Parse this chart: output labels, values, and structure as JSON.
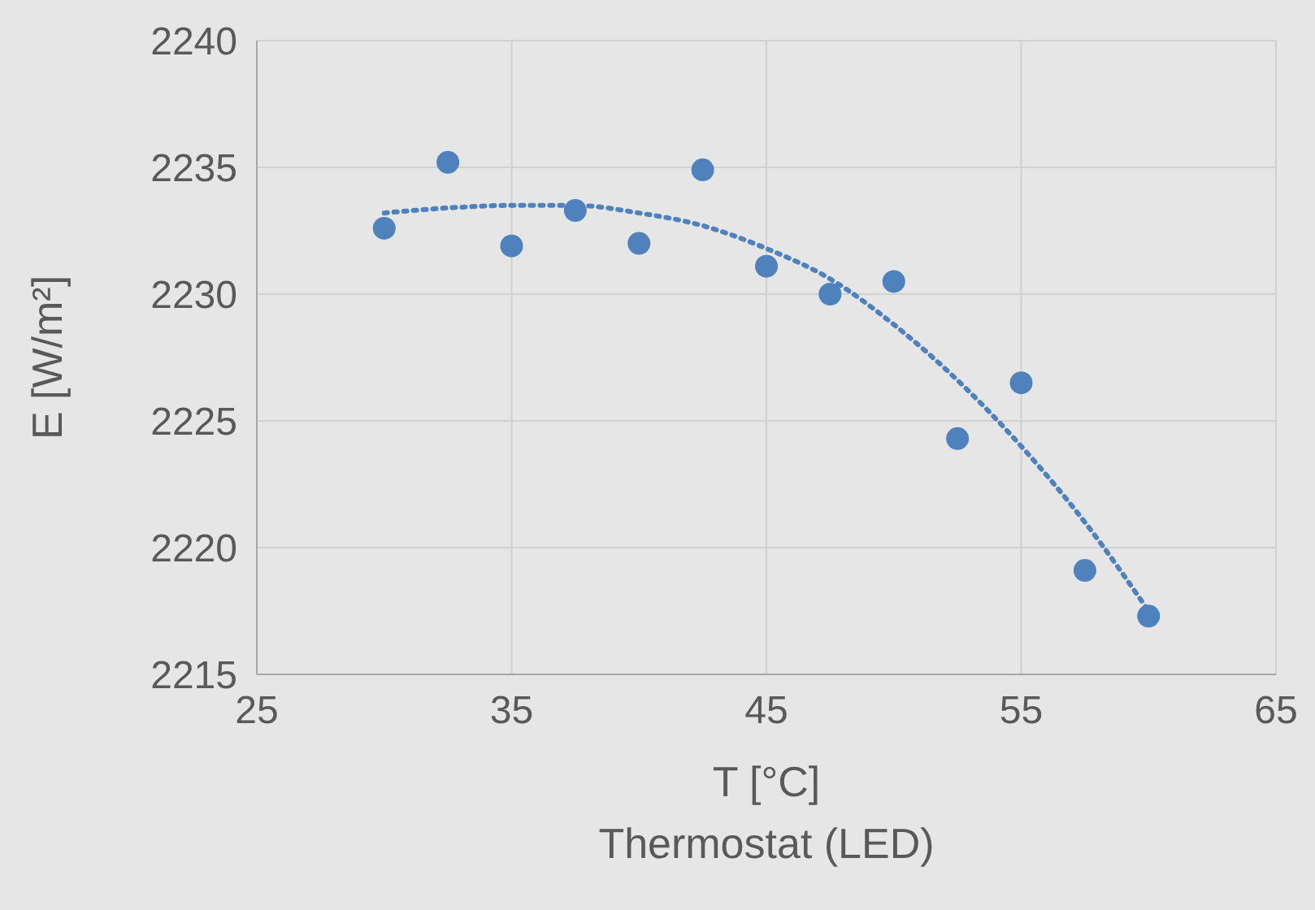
{
  "chart_data": {
    "type": "scatter",
    "xlabel": "T [°C]",
    "ylabel": "E [W/m²]",
    "annotations": [
      "Thermostat (LED)"
    ],
    "xlim": [
      25,
      65
    ],
    "xticks": [
      25,
      35,
      45,
      55,
      65
    ],
    "ylim": [
      2215,
      2240
    ],
    "yticks": [
      2215,
      2220,
      2225,
      2230,
      2235,
      2240
    ],
    "grid": true,
    "series": [
      {
        "color": "#4f81bd",
        "marker": "circle",
        "x": [
          30,
          32.5,
          35,
          37.5,
          40,
          42.5,
          45,
          47.5,
          50,
          52.5,
          55,
          57.5,
          60
        ],
        "values": [
          2232.6,
          2235.2,
          2231.9,
          2233.3,
          2232.0,
          2234.9,
          2231.1,
          2230.0,
          2230.5,
          2224.3,
          2226.5,
          2219.1,
          2217.3
        ]
      },
      {
        "type": "line",
        "color": "#4f81bd",
        "line_style": "dotted",
        "marker": "none",
        "x": [
          30,
          32.5,
          35,
          37.5,
          40,
          42.5,
          45,
          47.5,
          50,
          52.5,
          55,
          57.5,
          60
        ],
        "values": [
          2233.2,
          2233.4,
          2233.5,
          2233.5,
          2233.2,
          2232.7,
          2231.8,
          2230.6,
          2228.8,
          2226.6,
          2224.0,
          2221.0,
          2217.5
        ]
      }
    ]
  }
}
